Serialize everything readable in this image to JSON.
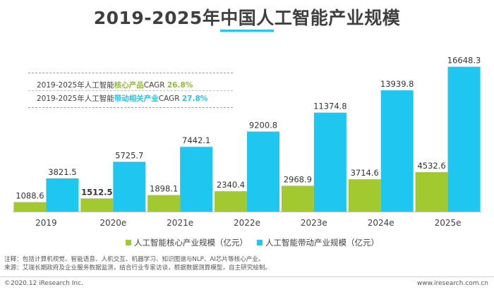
{
  "title": "2019-2025年中国人工智能产业规模",
  "cagr": {
    "core": {
      "prefix": "2019-2025年人工智能",
      "highlight": "核心产品",
      "suffix": "CAGR ",
      "rate": "26.8%"
    },
    "driven": {
      "prefix": "2019-2025年人工智能",
      "highlight": "带动相关产业",
      "suffix": "CAGR ",
      "rate": "27.8%"
    }
  },
  "colors": {
    "core": "#a3c930",
    "driven": "#1fc6ef",
    "axis": "#bfbfbf"
  },
  "chart_data": {
    "type": "bar",
    "categories": [
      "2019",
      "2020e",
      "2021e",
      "2022e",
      "2023e",
      "2024e",
      "2025e"
    ],
    "series": [
      {
        "name": "人工智能核心产业规模（亿元）",
        "values": [
          1088.6,
          1512.5,
          1898.1,
          2340.4,
          2968.9,
          3714.6,
          4532.6
        ],
        "labels": [
          "1088.6",
          "1512.5",
          "1898.1",
          "2340.4",
          "2968.9",
          "3714.6",
          "4532.6"
        ]
      },
      {
        "name": "人工智能带动产业规模（亿元）",
        "values": [
          3821.5,
          5725.7,
          7442.1,
          9200.8,
          11374.8,
          13939.8,
          16648.3
        ],
        "labels": [
          "3821.5",
          "5725.7",
          "7442.1",
          "9200.8",
          "11374.8",
          "13939.8",
          "16648.3"
        ]
      }
    ],
    "ylim": [
      0,
      18000
    ],
    "grid": false,
    "legend": "bottom"
  },
  "legend": {
    "core": "人工智能核心产业规模（亿元）",
    "driven": "人工智能带动产业规模（亿元）"
  },
  "notes": {
    "note": "注释：包括计算机视觉、智能语音、人机交互、机器学习、知识图谱与NLP、AI芯片等核心产业。",
    "source": "来源：艾瑞长期政府及企业服务数据监测，结合行业专家访谈，根据数据测算模型，自主研究绘制。"
  },
  "footer": {
    "copyright": "©2020.12 iResearch Inc.",
    "site": "www.iresearch.com.cn"
  }
}
